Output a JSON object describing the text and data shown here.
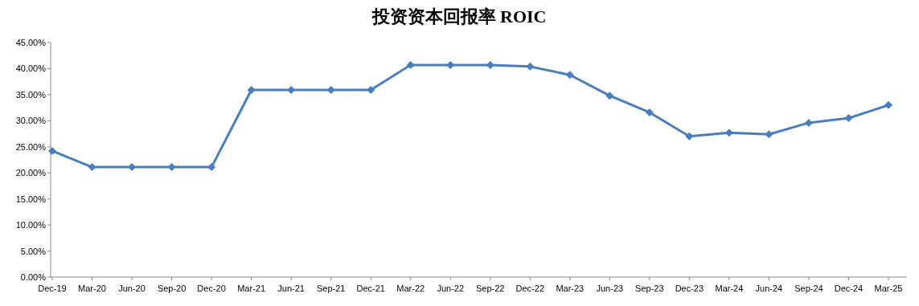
{
  "chart_data": {
    "type": "line",
    "title": "投资资本回报率 ROIC",
    "categories": [
      "Dec-19",
      "Mar-20",
      "Jun-20",
      "Sep-20",
      "Dec-20",
      "Mar-21",
      "Jun-21",
      "Sep-21",
      "Dec-21",
      "Mar-22",
      "Jun-22",
      "Sep-22",
      "Dec-22",
      "Mar-23",
      "Jun-23",
      "Sep-23",
      "Dec-23",
      "Mar-24",
      "Jun-24",
      "Sep-24",
      "Dec-24",
      "Mar-25"
    ],
    "values": [
      24.2,
      21.1,
      21.1,
      21.1,
      21.1,
      35.9,
      35.9,
      35.9,
      35.9,
      40.7,
      40.7,
      40.7,
      40.4,
      38.8,
      34.8,
      31.6,
      27.0,
      27.7,
      27.4,
      29.6,
      30.5,
      33.0
    ],
    "color": "#4a7ebb",
    "marker": "diamond",
    "ylim": [
      0,
      45
    ],
    "yticks": [
      {
        "value": 0,
        "label": "0.00%"
      },
      {
        "value": 5,
        "label": "5.00%"
      },
      {
        "value": 10,
        "label": "10.00%"
      },
      {
        "value": 15,
        "label": "15.00%"
      },
      {
        "value": 20,
        "label": "20.00%"
      },
      {
        "value": 25,
        "label": "25.00%"
      },
      {
        "value": 30,
        "label": "30.00%"
      },
      {
        "value": 35,
        "label": "35.00%"
      },
      {
        "value": 40,
        "label": "40.00%"
      },
      {
        "value": 45,
        "label": "45.00%"
      }
    ]
  }
}
